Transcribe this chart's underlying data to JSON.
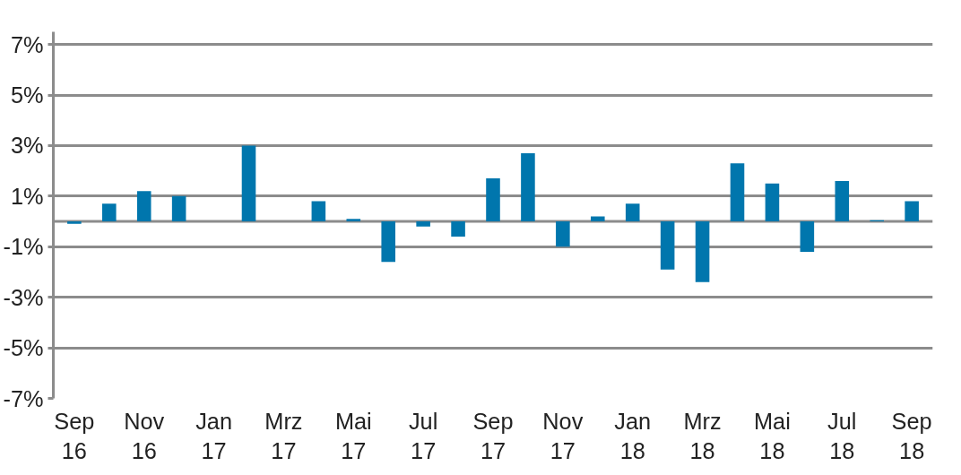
{
  "chart_data": {
    "type": "bar",
    "categories": [
      "Sep 16",
      null,
      "Nov 16",
      null,
      "Jan 17",
      null,
      "Mrz 17",
      null,
      "Mai 17",
      null,
      "Jul 17",
      null,
      "Sep 17",
      null,
      "Nov 17",
      null,
      "Jan 18",
      null,
      "Mrz 18",
      null,
      "Mai 18",
      null,
      "Jul 18",
      null,
      "Sep 18"
    ],
    "values": [
      -0.1,
      0.7,
      1.2,
      1.0,
      0.0,
      3.0,
      0.0,
      0.8,
      0.1,
      -1.6,
      -0.2,
      -0.6,
      1.7,
      2.7,
      -1.0,
      0.2,
      0.7,
      -1.9,
      -2.4,
      2.3,
      1.5,
      -1.2,
      1.6,
      0.05,
      0.8
    ],
    "color": "#0076ad",
    "ylim": [
      -7,
      7.5
    ],
    "yticks": [
      {
        "value": -7,
        "label": "-7%"
      },
      {
        "value": -5,
        "label": "-5%"
      },
      {
        "value": -3,
        "label": "-3%"
      },
      {
        "value": -1,
        "label": "-1%"
      },
      {
        "value": 1,
        "label": "1%"
      },
      {
        "value": 3,
        "label": "3%"
      },
      {
        "value": 5,
        "label": "5%"
      },
      {
        "value": 7,
        "label": "7%"
      }
    ],
    "grid": "y"
  }
}
